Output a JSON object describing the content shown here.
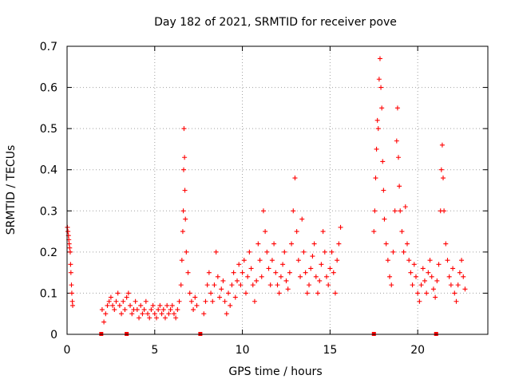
{
  "chart_data": {
    "type": "scatter",
    "title": "Day 182 of 2021, SRMTID for receiver pove",
    "xlabel": "GPS time / hours",
    "ylabel": "SRMTID / TECUs",
    "xlim": [
      0,
      24
    ],
    "ylim": [
      0,
      0.7
    ],
    "xticks": [
      0,
      5,
      10,
      15,
      20
    ],
    "xtick_labels": [
      "0",
      "5",
      "10",
      "15",
      "20"
    ],
    "yticks": [
      0,
      0.1,
      0.2,
      0.3,
      0.4,
      0.5,
      0.6,
      0.7
    ],
    "ytick_labels": [
      "0",
      "0.1",
      "0.2",
      "0.3",
      "0.4",
      "0.5",
      "0.6",
      "0.7"
    ],
    "grid": true,
    "marker": "+",
    "color": "#ff0000",
    "series": [
      {
        "name": "SRMTID",
        "points": [
          [
            0.02,
            0.26
          ],
          [
            0.05,
            0.25
          ],
          [
            0.08,
            0.24
          ],
          [
            0.1,
            0.23
          ],
          [
            0.12,
            0.22
          ],
          [
            0.15,
            0.21
          ],
          [
            0.18,
            0.2
          ],
          [
            0.2,
            0.17
          ],
          [
            0.22,
            0.15
          ],
          [
            0.25,
            0.12
          ],
          [
            0.27,
            0.1
          ],
          [
            0.3,
            0.08
          ],
          [
            0.32,
            0.07
          ],
          [
            2.0,
            0.06
          ],
          [
            2.1,
            0.03
          ],
          [
            2.2,
            0.05
          ],
          [
            2.3,
            0.07
          ],
          [
            2.4,
            0.08
          ],
          [
            2.5,
            0.09
          ],
          [
            2.6,
            0.07
          ],
          [
            2.7,
            0.06
          ],
          [
            2.8,
            0.08
          ],
          [
            2.9,
            0.1
          ],
          [
            3.0,
            0.07
          ],
          [
            3.1,
            0.05
          ],
          [
            3.2,
            0.08
          ],
          [
            3.3,
            0.06
          ],
          [
            3.4,
            0.09
          ],
          [
            3.5,
            0.1
          ],
          [
            3.6,
            0.07
          ],
          [
            3.7,
            0.05
          ],
          [
            3.8,
            0.06
          ],
          [
            3.9,
            0.08
          ],
          [
            4.0,
            0.06
          ],
          [
            4.1,
            0.04
          ],
          [
            4.2,
            0.07
          ],
          [
            4.3,
            0.05
          ],
          [
            4.4,
            0.06
          ],
          [
            4.5,
            0.08
          ],
          [
            4.6,
            0.05
          ],
          [
            4.7,
            0.04
          ],
          [
            4.8,
            0.06
          ],
          [
            4.9,
            0.07
          ],
          [
            5.0,
            0.05
          ],
          [
            5.1,
            0.04
          ],
          [
            5.2,
            0.06
          ],
          [
            5.3,
            0.07
          ],
          [
            5.4,
            0.05
          ],
          [
            5.5,
            0.06
          ],
          [
            5.6,
            0.04
          ],
          [
            5.7,
            0.07
          ],
          [
            5.8,
            0.05
          ],
          [
            5.9,
            0.06
          ],
          [
            6.0,
            0.07
          ],
          [
            6.1,
            0.05
          ],
          [
            6.2,
            0.04
          ],
          [
            6.3,
            0.06
          ],
          [
            6.4,
            0.08
          ],
          [
            6.5,
            0.12
          ],
          [
            6.55,
            0.18
          ],
          [
            6.6,
            0.25
          ],
          [
            6.63,
            0.3
          ],
          [
            6.65,
            0.4
          ],
          [
            6.67,
            0.5
          ],
          [
            6.7,
            0.43
          ],
          [
            6.72,
            0.35
          ],
          [
            6.75,
            0.28
          ],
          [
            6.8,
            0.2
          ],
          [
            6.9,
            0.15
          ],
          [
            7.0,
            0.1
          ],
          [
            7.1,
            0.08
          ],
          [
            7.2,
            0.06
          ],
          [
            7.3,
            0.09
          ],
          [
            7.4,
            0.07
          ],
          [
            7.8,
            0.05
          ],
          [
            7.9,
            0.08
          ],
          [
            8.0,
            0.12
          ],
          [
            8.1,
            0.15
          ],
          [
            8.2,
            0.1
          ],
          [
            8.3,
            0.08
          ],
          [
            8.4,
            0.12
          ],
          [
            8.5,
            0.2
          ],
          [
            8.6,
            0.14
          ],
          [
            8.7,
            0.09
          ],
          [
            8.8,
            0.11
          ],
          [
            8.9,
            0.13
          ],
          [
            9.0,
            0.08
          ],
          [
            9.1,
            0.05
          ],
          [
            9.2,
            0.1
          ],
          [
            9.3,
            0.07
          ],
          [
            9.4,
            0.12
          ],
          [
            9.5,
            0.15
          ],
          [
            9.6,
            0.09
          ],
          [
            9.7,
            0.13
          ],
          [
            9.8,
            0.17
          ],
          [
            9.9,
            0.12
          ],
          [
            10.0,
            0.15
          ],
          [
            10.1,
            0.18
          ],
          [
            10.2,
            0.1
          ],
          [
            10.3,
            0.14
          ],
          [
            10.4,
            0.2
          ],
          [
            10.5,
            0.16
          ],
          [
            10.6,
            0.12
          ],
          [
            10.7,
            0.08
          ],
          [
            10.8,
            0.13
          ],
          [
            10.9,
            0.22
          ],
          [
            11.0,
            0.18
          ],
          [
            11.1,
            0.14
          ],
          [
            11.2,
            0.3
          ],
          [
            11.3,
            0.25
          ],
          [
            11.4,
            0.2
          ],
          [
            11.5,
            0.16
          ],
          [
            11.6,
            0.12
          ],
          [
            11.7,
            0.18
          ],
          [
            11.8,
            0.22
          ],
          [
            11.9,
            0.15
          ],
          [
            12.0,
            0.12
          ],
          [
            12.1,
            0.1
          ],
          [
            12.2,
            0.14
          ],
          [
            12.3,
            0.17
          ],
          [
            12.4,
            0.2
          ],
          [
            12.5,
            0.13
          ],
          [
            12.6,
            0.11
          ],
          [
            12.7,
            0.15
          ],
          [
            12.8,
            0.22
          ],
          [
            12.9,
            0.3
          ],
          [
            13.0,
            0.38
          ],
          [
            13.1,
            0.25
          ],
          [
            13.2,
            0.18
          ],
          [
            13.3,
            0.14
          ],
          [
            13.4,
            0.28
          ],
          [
            13.5,
            0.2
          ],
          [
            13.6,
            0.15
          ],
          [
            13.7,
            0.1
          ],
          [
            13.8,
            0.12
          ],
          [
            13.9,
            0.16
          ],
          [
            14.0,
            0.19
          ],
          [
            14.1,
            0.22
          ],
          [
            14.2,
            0.14
          ],
          [
            14.3,
            0.1
          ],
          [
            14.4,
            0.13
          ],
          [
            14.5,
            0.17
          ],
          [
            14.6,
            0.25
          ],
          [
            14.7,
            0.2
          ],
          [
            14.8,
            0.14
          ],
          [
            14.9,
            0.12
          ],
          [
            15.0,
            0.16
          ],
          [
            15.1,
            0.2
          ],
          [
            15.2,
            0.15
          ],
          [
            15.3,
            0.1
          ],
          [
            15.4,
            0.18
          ],
          [
            15.5,
            0.22
          ],
          [
            15.6,
            0.26
          ],
          [
            17.5,
            0.25
          ],
          [
            17.55,
            0.3
          ],
          [
            17.6,
            0.38
          ],
          [
            17.65,
            0.45
          ],
          [
            17.7,
            0.52
          ],
          [
            17.75,
            0.5
          ],
          [
            17.8,
            0.62
          ],
          [
            17.85,
            0.67
          ],
          [
            17.9,
            0.6
          ],
          [
            17.95,
            0.55
          ],
          [
            18.0,
            0.42
          ],
          [
            18.05,
            0.35
          ],
          [
            18.1,
            0.28
          ],
          [
            18.2,
            0.22
          ],
          [
            18.3,
            0.18
          ],
          [
            18.4,
            0.14
          ],
          [
            18.5,
            0.12
          ],
          [
            18.6,
            0.2
          ],
          [
            18.7,
            0.3
          ],
          [
            18.8,
            0.47
          ],
          [
            18.85,
            0.55
          ],
          [
            18.9,
            0.43
          ],
          [
            18.95,
            0.36
          ],
          [
            19.0,
            0.3
          ],
          [
            19.1,
            0.25
          ],
          [
            19.2,
            0.2
          ],
          [
            19.3,
            0.31
          ],
          [
            19.4,
            0.22
          ],
          [
            19.5,
            0.18
          ],
          [
            19.6,
            0.15
          ],
          [
            19.7,
            0.12
          ],
          [
            19.8,
            0.17
          ],
          [
            19.9,
            0.14
          ],
          [
            20.0,
            0.1
          ],
          [
            20.1,
            0.08
          ],
          [
            20.2,
            0.12
          ],
          [
            20.3,
            0.16
          ],
          [
            20.4,
            0.13
          ],
          [
            20.5,
            0.1
          ],
          [
            20.6,
            0.15
          ],
          [
            20.7,
            0.18
          ],
          [
            20.8,
            0.14
          ],
          [
            20.9,
            0.11
          ],
          [
            21.0,
            0.09
          ],
          [
            21.1,
            0.13
          ],
          [
            21.2,
            0.17
          ],
          [
            21.3,
            0.3
          ],
          [
            21.35,
            0.4
          ],
          [
            21.4,
            0.46
          ],
          [
            21.45,
            0.38
          ],
          [
            21.5,
            0.3
          ],
          [
            21.6,
            0.22
          ],
          [
            21.7,
            0.18
          ],
          [
            21.8,
            0.14
          ],
          [
            21.9,
            0.12
          ],
          [
            22.0,
            0.16
          ],
          [
            22.1,
            0.1
          ],
          [
            22.2,
            0.08
          ],
          [
            22.3,
            0.12
          ],
          [
            22.4,
            0.15
          ],
          [
            22.5,
            0.18
          ],
          [
            22.6,
            0.14
          ],
          [
            22.7,
            0.11
          ]
        ]
      }
    ],
    "baseline_markers_x": [
      1.95,
      3.4,
      7.6,
      17.5,
      21.05
    ]
  }
}
